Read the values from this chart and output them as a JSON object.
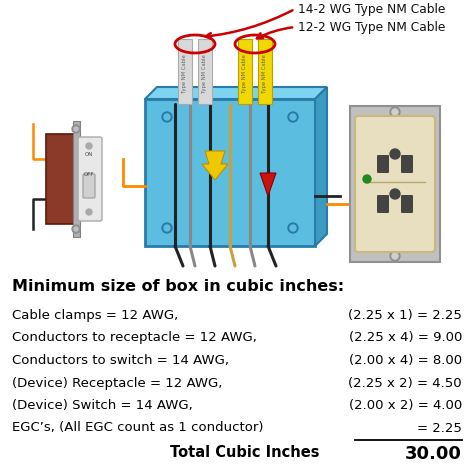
{
  "title": "Minimum size of box in cubic inches:",
  "rows": [
    {
      "label": "Cable clamps = 12 AWG,",
      "calc": "(2.25 x 1) = 2.25"
    },
    {
      "label": "Conductors to receptacle = 12 AWG,",
      "calc": "(2.25 x 4) = 9.00"
    },
    {
      "label": "Conductors to switch = 14 AWG,",
      "calc": "(2.00 x 4) = 8.00"
    },
    {
      "label": "(Device) Receptacle = 12 AWG,",
      "calc": "(2.25 x 2) = 4.50"
    },
    {
      "label": "(Device) Switch = 14 AWG,",
      "calc": "(2.00 x 2) = 4.00"
    },
    {
      "label": "EGC’s, (All EGC count as 1 conductor)",
      "calc": "= 2.25"
    }
  ],
  "total_label": "Total Cubic Inches",
  "total_value": "30.00",
  "label1": "14-2 WG Type NM Cable",
  "label2": "12-2 WG Type NM Cable",
  "bg_color": "#ffffff",
  "title_color": "#000000",
  "text_color": "#000000",
  "box_color": "#5bbde0",
  "box_edge": "#2a7aaa",
  "cable_white": "#d8d8d8",
  "cable_yellow": "#f0d800",
  "switch_gray": "#c8c8c8",
  "receptacle_cream": "#e8dfc0",
  "arrow_red": "#cc0000",
  "wire_orange": "#ff8800",
  "wire_black": "#222222",
  "wire_white": "#bbbbbb",
  "wire_bare": "#c8a040"
}
